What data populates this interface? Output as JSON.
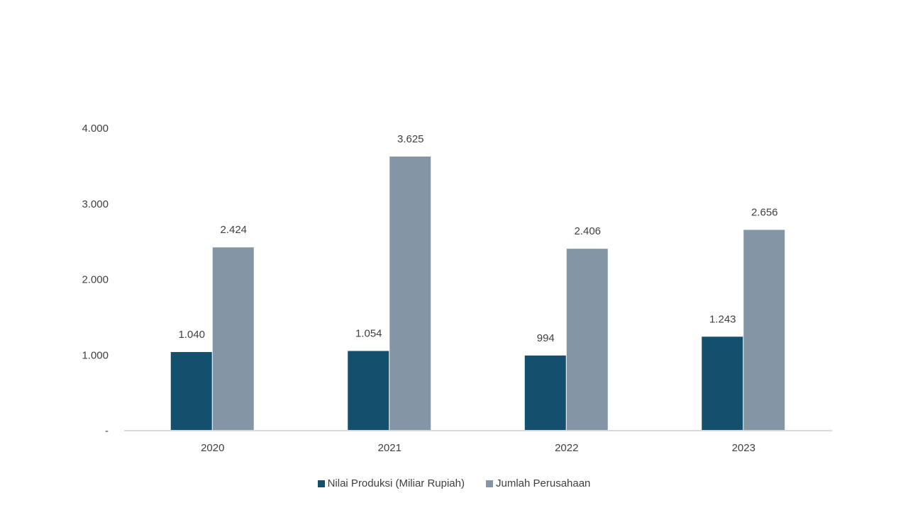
{
  "chart_data": {
    "type": "bar",
    "categories": [
      "2020",
      "2021",
      "2022",
      "2023"
    ],
    "series": [
      {
        "name": "Nilai Produksi (Miliar Rupiah)",
        "color": "#13506e",
        "values": [
          1040,
          1054,
          994,
          1243
        ],
        "labels": [
          "1.040",
          "1.054",
          "994",
          "1.243"
        ]
      },
      {
        "name": "Jumlah Perusahaan",
        "color": "#8496a6",
        "values": [
          2424,
          3625,
          2406,
          2656
        ],
        "labels": [
          "2.424",
          "3.625",
          "2.406",
          "2.656"
        ]
      }
    ],
    "yticks": [
      0,
      1000,
      2000,
      3000,
      4000
    ],
    "ytick_labels": [
      "-",
      "1.000",
      "2.000",
      "3.000",
      "4.000"
    ],
    "ylim": [
      0,
      4000
    ],
    "grid": false,
    "legend_position": "bottom"
  }
}
